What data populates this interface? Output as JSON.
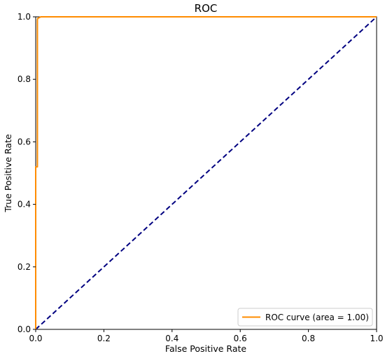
{
  "chart_data": {
    "type": "line",
    "title": "ROC",
    "xlabel": "False Positive Rate",
    "ylabel": "True Positive Rate",
    "xlim": [
      0.0,
      1.0
    ],
    "ylim": [
      0.0,
      1.0
    ],
    "xticks": [
      "0.0",
      "0.2",
      "0.4",
      "0.6",
      "0.8",
      "1.0"
    ],
    "yticks": [
      "0.0",
      "0.2",
      "0.4",
      "0.6",
      "0.8",
      "1.0"
    ],
    "grid": false,
    "legend_position": "lower-right",
    "series": [
      {
        "name": "ROC curve (area = 1.00)",
        "color": "#ff8c00",
        "style": "solid",
        "x": [
          0.0,
          0.0,
          0.005,
          0.005,
          0.006,
          0.015,
          1.0
        ],
        "y": [
          0.0,
          0.52,
          0.52,
          0.99,
          0.995,
          1.0,
          1.0
        ]
      },
      {
        "name": "",
        "color": "#000080",
        "style": "dashed",
        "x": [
          0.0,
          1.0
        ],
        "y": [
          0.0,
          1.0
        ]
      }
    ],
    "legend": {
      "label": "ROC curve (area = 1.00)"
    }
  }
}
